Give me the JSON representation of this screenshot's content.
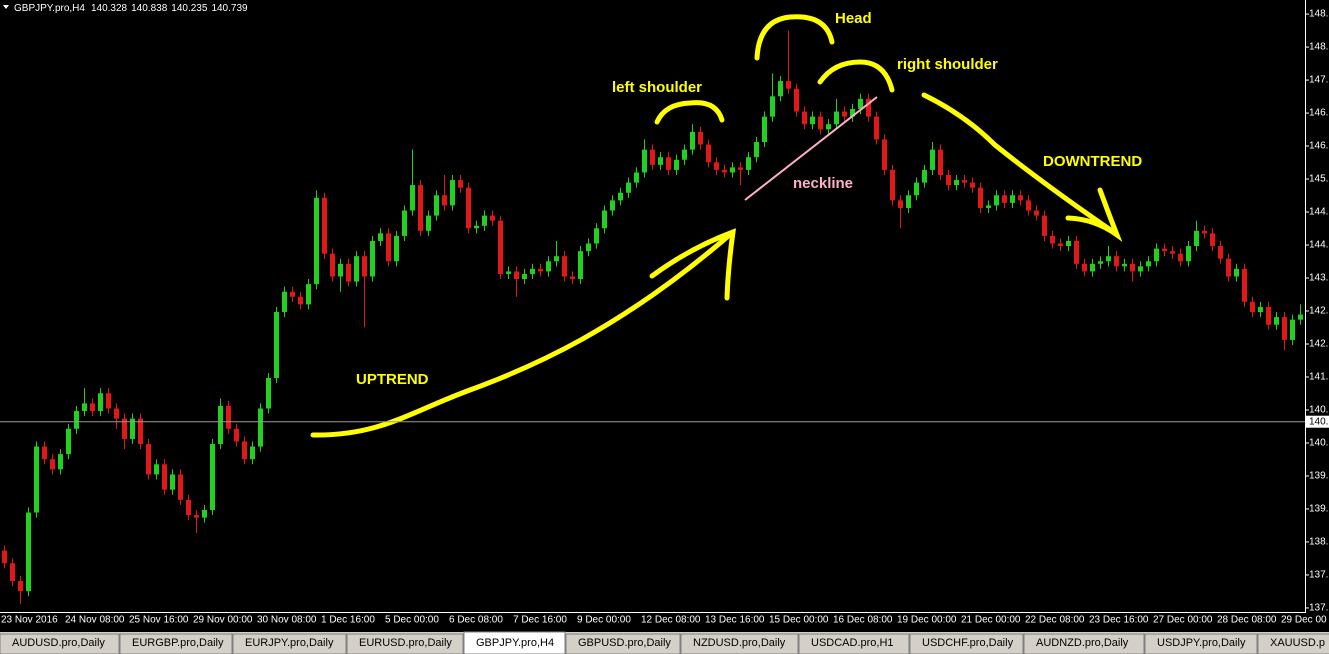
{
  "chart_data": {
    "type": "candlestick",
    "title": "GBPJPY.pro,H4",
    "last_bar": {
      "open": 140.328,
      "high": 140.838,
      "low": 140.235,
      "close": 140.739
    },
    "categories": [
      "23 Nov 2016",
      null,
      null,
      null,
      null,
      null,
      null,
      null,
      "24 Nov 08:00",
      null,
      null,
      null,
      null,
      null,
      null,
      null,
      "25 Nov 16:00",
      null,
      null,
      null,
      null,
      null,
      null,
      null,
      "29 Nov 00:00",
      null,
      null,
      null,
      null,
      null,
      null,
      null,
      "30 Nov 08:00",
      null,
      null,
      null,
      null,
      null,
      null,
      null,
      "1 Dec 16:00",
      null,
      null,
      null,
      null,
      null,
      null,
      null,
      "5 Dec 00:00",
      null,
      null,
      null,
      null,
      null,
      null,
      null,
      "6 Dec 08:00",
      null,
      null,
      null,
      null,
      null,
      null,
      null,
      "7 Dec 16:00",
      null,
      null,
      null,
      null,
      null,
      null,
      null,
      "9 Dec 00:00",
      null,
      null,
      null,
      null,
      null,
      null,
      null,
      "12 Dec 08:00",
      null,
      null,
      null,
      null,
      null,
      null,
      null,
      "13 Dec 16:00",
      null,
      null,
      null,
      null,
      null,
      null,
      null,
      "15 Dec 00:00",
      null,
      null,
      null,
      null,
      null,
      null,
      null,
      "16 Dec 08:00",
      null,
      null,
      null,
      null,
      null,
      null,
      null,
      "19 Dec 00:00",
      null,
      null,
      null,
      null,
      null,
      null,
      null,
      "21 Dec 00:00",
      null,
      null,
      null,
      null,
      null,
      null,
      null,
      "22 Dec 08:00",
      null,
      null,
      null,
      null,
      null,
      null,
      null,
      "23 Dec 16:00",
      null,
      null,
      null,
      null,
      null,
      null,
      null,
      "27 Dec 00:00",
      null,
      null,
      null,
      null,
      null,
      null,
      null,
      "28 Dec 08:00",
      null,
      null,
      null,
      null,
      null,
      null,
      null,
      "29 Dec 00",
      null,
      null
    ],
    "open": [
      138.2,
      137.95,
      137.6,
      137.4,
      138.95,
      140.25,
      140.0,
      139.8,
      140.1,
      140.6,
      140.95,
      141.1,
      140.95,
      141.3,
      141.0,
      140.8,
      140.4,
      140.8,
      140.3,
      139.7,
      139.9,
      139.4,
      139.7,
      139.2,
      138.9,
      138.85,
      139.0,
      140.3,
      141.05,
      140.6,
      140.35,
      140.0,
      140.25,
      141.0,
      141.6,
      142.9,
      143.3,
      143.2,
      143.05,
      143.45,
      145.15,
      144.05,
      143.6,
      143.85,
      143.5,
      144.0,
      143.6,
      144.3,
      144.45,
      143.9,
      144.4,
      144.9,
      145.4,
      144.5,
      144.8,
      145.2,
      145.0,
      145.5,
      145.35,
      144.55,
      144.6,
      144.8,
      144.7,
      143.65,
      143.7,
      143.55,
      143.65,
      143.75,
      143.7,
      143.9,
      144.0,
      143.6,
      143.55,
      144.1,
      144.25,
      144.55,
      144.9,
      145.1,
      145.25,
      145.45,
      145.65,
      146.1,
      145.8,
      145.95,
      145.7,
      145.9,
      146.1,
      146.45,
      146.2,
      145.85,
      145.7,
      145.65,
      145.75,
      145.7,
      145.95,
      146.25,
      146.75,
      147.15,
      147.45,
      147.3,
      146.85,
      146.6,
      146.75,
      146.5,
      146.6,
      146.85,
      146.75,
      146.9,
      147.1,
      146.75,
      146.3,
      145.7,
      145.1,
      144.95,
      145.2,
      145.45,
      145.7,
      146.1,
      145.6,
      145.4,
      145.5,
      145.45,
      145.35,
      144.95,
      145.0,
      145.2,
      145.05,
      145.2,
      145.1,
      144.9,
      144.8,
      144.4,
      144.25,
      144.2,
      144.3,
      143.85,
      143.7,
      143.85,
      143.9,
      144.0,
      143.8,
      143.85,
      143.7,
      143.8,
      143.9,
      144.15,
      144.1,
      144.05,
      143.9,
      144.2,
      144.5,
      144.45,
      144.2,
      143.95,
      143.6,
      143.75,
      143.1,
      142.9,
      143.0,
      142.65,
      142.8,
      142.35,
      142.75
    ],
    "high": [
      138.3,
      138.05,
      137.7,
      139.05,
      140.35,
      140.35,
      140.1,
      140.2,
      140.7,
      141.05,
      141.4,
      141.2,
      141.4,
      141.4,
      141.1,
      140.9,
      140.9,
      140.9,
      140.4,
      140.0,
      140.0,
      139.8,
      139.8,
      139.3,
      139.0,
      139.1,
      140.4,
      141.2,
      141.15,
      140.7,
      140.45,
      140.35,
      141.1,
      141.7,
      143.0,
      143.4,
      143.4,
      143.3,
      143.55,
      145.3,
      145.25,
      144.15,
      143.95,
      143.95,
      144.1,
      144.1,
      144.4,
      144.55,
      144.55,
      144.5,
      145.0,
      146.1,
      145.5,
      144.9,
      145.3,
      145.6,
      145.6,
      145.6,
      145.45,
      144.7,
      144.9,
      144.9,
      144.8,
      143.8,
      143.8,
      143.75,
      143.85,
      143.85,
      144.0,
      144.3,
      144.1,
      143.7,
      144.2,
      144.35,
      144.65,
      145.0,
      145.2,
      145.35,
      145.55,
      145.75,
      146.3,
      146.2,
      146.05,
      146.05,
      146.0,
      146.2,
      146.6,
      146.55,
      146.3,
      145.95,
      145.8,
      145.85,
      145.85,
      146.05,
      146.35,
      146.85,
      147.6,
      147.55,
      148.45,
      147.4,
      146.95,
      146.85,
      146.85,
      146.7,
      147.1,
      146.95,
      147.0,
      147.2,
      147.2,
      146.85,
      146.4,
      145.8,
      145.2,
      145.3,
      145.55,
      145.8,
      146.25,
      146.2,
      145.7,
      145.6,
      145.6,
      145.55,
      145.45,
      145.1,
      145.3,
      145.3,
      145.3,
      145.3,
      145.2,
      145.0,
      144.9,
      144.5,
      144.35,
      144.4,
      144.4,
      143.95,
      143.95,
      144.0,
      144.2,
      144.1,
      143.95,
      143.95,
      143.9,
      144.0,
      144.25,
      144.25,
      144.2,
      144.15,
      144.3,
      144.7,
      144.6,
      144.55,
      144.3,
      144.05,
      143.85,
      143.85,
      143.2,
      143.1,
      143.1,
      142.9,
      142.9,
      142.85,
      143.05
    ],
    "low": [
      137.85,
      137.5,
      137.15,
      137.3,
      138.85,
      139.9,
      139.7,
      139.7,
      140.0,
      140.5,
      140.85,
      140.85,
      140.85,
      140.9,
      140.6,
      140.2,
      140.3,
      140.2,
      139.6,
      139.6,
      139.3,
      139.3,
      139.1,
      138.8,
      138.55,
      138.75,
      138.9,
      140.2,
      140.5,
      140.25,
      139.9,
      139.9,
      140.15,
      140.9,
      141.5,
      142.8,
      143.1,
      142.95,
      142.95,
      143.35,
      143.95,
      143.5,
      143.3,
      143.4,
      143.4,
      142.6,
      143.5,
      144.2,
      143.8,
      143.8,
      144.3,
      144.8,
      144.4,
      144.4,
      144.7,
      144.9,
      144.9,
      145.25,
      144.45,
      144.45,
      144.5,
      144.6,
      143.55,
      143.55,
      143.2,
      143.45,
      143.55,
      143.6,
      143.6,
      143.8,
      143.5,
      143.45,
      143.45,
      144.0,
      144.15,
      144.45,
      144.8,
      145.0,
      145.15,
      145.35,
      145.55,
      145.7,
      145.7,
      145.6,
      145.6,
      145.8,
      146.0,
      146.1,
      145.75,
      145.6,
      145.55,
      145.55,
      145.4,
      145.6,
      145.85,
      146.15,
      146.65,
      147.05,
      147.2,
      146.75,
      146.5,
      146.5,
      146.4,
      146.4,
      146.5,
      146.65,
      146.65,
      146.8,
      146.65,
      146.2,
      145.6,
      145.0,
      144.55,
      144.85,
      145.1,
      145.35,
      145.6,
      145.5,
      145.3,
      145.3,
      145.35,
      145.25,
      144.85,
      144.85,
      144.9,
      144.95,
      144.95,
      145.0,
      144.8,
      144.7,
      144.3,
      144.15,
      144.1,
      144.1,
      143.75,
      143.6,
      143.6,
      143.75,
      143.8,
      143.7,
      143.7,
      143.5,
      143.6,
      143.7,
      143.8,
      144.0,
      143.95,
      143.8,
      143.8,
      144.1,
      144.35,
      144.1,
      143.85,
      143.5,
      143.5,
      143.0,
      142.8,
      142.8,
      142.55,
      142.55,
      142.15,
      142.25,
      142.65
    ],
    "close": [
      137.95,
      137.6,
      137.4,
      138.95,
      140.25,
      140.0,
      139.8,
      140.1,
      140.6,
      140.95,
      141.1,
      140.95,
      141.3,
      141.0,
      140.8,
      140.4,
      140.8,
      140.3,
      139.7,
      139.9,
      139.4,
      139.7,
      139.2,
      138.9,
      138.85,
      139.0,
      140.3,
      141.05,
      140.6,
      140.35,
      140.0,
      140.25,
      141.0,
      141.6,
      142.9,
      143.3,
      143.2,
      143.05,
      143.45,
      145.15,
      144.05,
      143.6,
      143.85,
      143.5,
      144.0,
      143.6,
      144.3,
      144.45,
      143.9,
      144.4,
      144.9,
      145.4,
      144.5,
      144.8,
      145.2,
      145.0,
      145.5,
      145.35,
      144.55,
      144.6,
      144.8,
      144.7,
      143.65,
      143.7,
      143.55,
      143.65,
      143.75,
      143.7,
      143.9,
      144.0,
      143.6,
      143.55,
      144.1,
      144.25,
      144.55,
      144.9,
      145.1,
      145.25,
      145.45,
      145.65,
      146.1,
      145.8,
      145.95,
      145.7,
      145.9,
      146.1,
      146.45,
      146.2,
      145.85,
      145.7,
      145.65,
      145.75,
      145.7,
      145.95,
      146.25,
      146.75,
      147.15,
      147.45,
      147.3,
      146.85,
      146.6,
      146.75,
      146.5,
      146.6,
      146.85,
      146.75,
      146.9,
      147.1,
      146.75,
      146.3,
      145.7,
      145.1,
      144.95,
      145.2,
      145.45,
      145.7,
      146.1,
      145.6,
      145.4,
      145.5,
      145.45,
      145.35,
      144.95,
      145.0,
      145.2,
      145.05,
      145.2,
      145.1,
      144.9,
      144.8,
      144.4,
      144.25,
      144.2,
      144.3,
      143.85,
      143.7,
      143.85,
      143.9,
      144.0,
      143.8,
      143.85,
      143.7,
      143.8,
      143.9,
      144.15,
      144.1,
      144.05,
      143.9,
      144.2,
      144.5,
      144.45,
      144.2,
      143.95,
      143.6,
      143.75,
      143.1,
      142.9,
      143.0,
      142.65,
      142.8,
      142.35,
      142.75,
      142.85
    ],
    "up_color": "#22d022",
    "down_color": "#e01818",
    "ylim": [
      136.99,
      148.89
    ],
    "yticks": [
      {
        "value": 137.07,
        "label": "137."
      },
      {
        "value": 137.72,
        "label": "137."
      },
      {
        "value": 138.37,
        "label": "138."
      },
      {
        "value": 139.02,
        "label": "139."
      },
      {
        "value": 139.67,
        "label": "139."
      },
      {
        "value": 140.32,
        "label": "140."
      },
      {
        "value": 140.97,
        "label": "140."
      },
      {
        "value": 141.62,
        "label": "141."
      },
      {
        "value": 142.27,
        "label": "142."
      },
      {
        "value": 142.92,
        "label": "142."
      },
      {
        "value": 143.57,
        "label": "143."
      },
      {
        "value": 144.22,
        "label": "144."
      },
      {
        "value": 144.87,
        "label": "144."
      },
      {
        "value": 145.52,
        "label": "145."
      },
      {
        "value": 146.17,
        "label": "146."
      },
      {
        "value": 146.82,
        "label": "146."
      },
      {
        "value": 147.47,
        "label": "147."
      },
      {
        "value": 148.12,
        "label": "148.1"
      },
      {
        "value": 148.77,
        "label": "148."
      }
    ],
    "current_price": {
      "value": 140.739,
      "label": "140."
    },
    "annotations": [
      "left shoulder",
      "Head",
      "right shoulder",
      "neckline",
      "UPTREND",
      "DOWNTREND"
    ]
  },
  "tabs": [
    "AUDUSD.pro,Daily",
    "EURGBP.pro,Daily",
    "EURJPY.pro,Daily",
    "EURUSD.pro,Daily",
    "GBPJPY.pro,H4",
    "GBPUSD.pro,Daily",
    "NZDUSD.pro,Daily",
    "USDCAD.pro,H1",
    "USDCHF.pro,Daily",
    "AUDNZD.pro,Daily",
    "USDJPY.pro,Daily",
    "XAUUSD.p"
  ],
  "active_tab": 4
}
